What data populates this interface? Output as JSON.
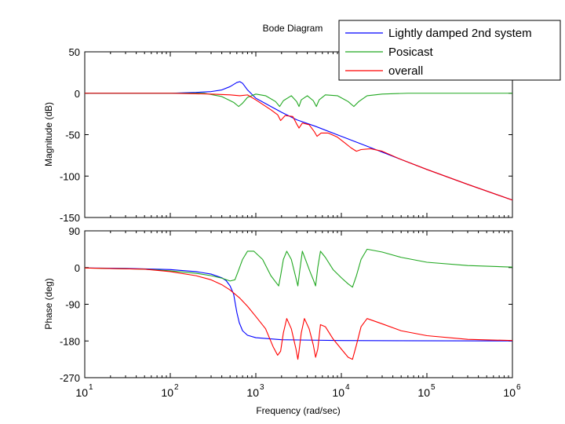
{
  "chart_data": {
    "type": "line",
    "title": "Bode Diagram",
    "xlabel": "Frequency  (rad/sec)",
    "x_scale": "log",
    "xlim": [
      10,
      1000000
    ],
    "x_ticks": [
      {
        "value": 10,
        "base": "10",
        "exp": "1"
      },
      {
        "value": 100,
        "base": "10",
        "exp": "2"
      },
      {
        "value": 1000,
        "base": "10",
        "exp": "3"
      },
      {
        "value": 10000,
        "base": "10",
        "exp": "4"
      },
      {
        "value": 100000,
        "base": "10",
        "exp": "5"
      },
      {
        "value": 1000000,
        "base": "10",
        "exp": "6"
      }
    ],
    "legend": {
      "placement": "top-right",
      "entries": [
        {
          "name": "Lightly damped 2nd system",
          "color": "#0000ff"
        },
        {
          "name": "Posicast",
          "color": "#22a822"
        },
        {
          "name": "overall",
          "color": "#ff0000"
        }
      ]
    },
    "panels": [
      {
        "id": "magnitude",
        "ylabel": "Magnitude (dB)",
        "ylim": [
          -150,
          50
        ],
        "y_ticks": [
          {
            "value": 50,
            "label": "50"
          },
          {
            "value": 0,
            "label": "0"
          },
          {
            "value": -50,
            "label": "-50"
          },
          {
            "value": -100,
            "label": "-100"
          },
          {
            "value": -150,
            "label": "-150"
          }
        ],
        "series": [
          {
            "name": "Lightly damped 2nd system",
            "color": "#0000ff",
            "points": [
              [
                10,
                0
              ],
              [
                100,
                0
              ],
              [
                200,
                1
              ],
              [
                300,
                2
              ],
              [
                400,
                4
              ],
              [
                500,
                8
              ],
              [
                600,
                13
              ],
              [
                650,
                14
              ],
              [
                700,
                12
              ],
              [
                800,
                4
              ],
              [
                1000,
                -6
              ],
              [
                1500,
                -16
              ],
              [
                2000,
                -23
              ],
              [
                3000,
                -32
              ],
              [
                5000,
                -40
              ],
              [
                10000,
                -52
              ],
              [
                20000,
                -64
              ],
              [
                50000,
                -80
              ],
              [
                100000,
                -92
              ],
              [
                300000,
                -110
              ],
              [
                1000000,
                -129
              ]
            ]
          },
          {
            "name": "Posicast",
            "color": "#22a822",
            "points": [
              [
                10,
                0
              ],
              [
                100,
                0
              ],
              [
                250,
                0
              ],
              [
                400,
                -4
              ],
              [
                550,
                -11
              ],
              [
                630,
                -16
              ],
              [
                700,
                -12
              ],
              [
                800,
                -5
              ],
              [
                1000,
                -1
              ],
              [
                1300,
                -3
              ],
              [
                1700,
                -10
              ],
              [
                1900,
                -16
              ],
              [
                2100,
                -9
              ],
              [
                2600,
                -3
              ],
              [
                3000,
                -10
              ],
              [
                3200,
                -16
              ],
              [
                3400,
                -8
              ],
              [
                4000,
                -3
              ],
              [
                4700,
                -9
              ],
              [
                5100,
                -16
              ],
              [
                5500,
                -8
              ],
              [
                6500,
                -2
              ],
              [
                9000,
                -3
              ],
              [
                12000,
                -10
              ],
              [
                14000,
                -16
              ],
              [
                16000,
                -10
              ],
              [
                20000,
                -3
              ],
              [
                30000,
                -1
              ],
              [
                60000,
                0
              ],
              [
                1000000,
                0
              ]
            ]
          },
          {
            "name": "overall",
            "color": "#ff0000",
            "points": [
              [
                10,
                0
              ],
              [
                100,
                0
              ],
              [
                300,
                -1
              ],
              [
                500,
                -2
              ],
              [
                650,
                -3
              ],
              [
                800,
                -2
              ],
              [
                1000,
                -8
              ],
              [
                1500,
                -20
              ],
              [
                1800,
                -26
              ],
              [
                1950,
                -33
              ],
              [
                2200,
                -27
              ],
              [
                2700,
                -28
              ],
              [
                3000,
                -37
              ],
              [
                3200,
                -42
              ],
              [
                3500,
                -36
              ],
              [
                4200,
                -38
              ],
              [
                4800,
                -46
              ],
              [
                5200,
                -52
              ],
              [
                5800,
                -48
              ],
              [
                7000,
                -48
              ],
              [
                9000,
                -53
              ],
              [
                11000,
                -60
              ],
              [
                13000,
                -66
              ],
              [
                15000,
                -70
              ],
              [
                17000,
                -68
              ],
              [
                22000,
                -67
              ],
              [
                30000,
                -70
              ],
              [
                50000,
                -80
              ],
              [
                100000,
                -92
              ],
              [
                300000,
                -110
              ],
              [
                1000000,
                -129
              ]
            ]
          }
        ]
      },
      {
        "id": "phase",
        "ylabel": "Phase (deg)",
        "ylim": [
          -270,
          90
        ],
        "y_ticks": [
          {
            "value": 90,
            "label": "90"
          },
          {
            "value": 0,
            "label": "0"
          },
          {
            "value": -90,
            "label": "-90"
          },
          {
            "value": -180,
            "label": "-180"
          },
          {
            "value": -270,
            "label": "-270"
          }
        ],
        "series": [
          {
            "name": "Lightly damped 2nd system",
            "color": "#0000ff",
            "points": [
              [
                10,
                -1
              ],
              [
                30,
                -2
              ],
              [
                100,
                -5
              ],
              [
                200,
                -10
              ],
              [
                300,
                -16
              ],
              [
                400,
                -25
              ],
              [
                450,
                -32
              ],
              [
                500,
                -45
              ],
              [
                550,
                -65
              ],
              [
                600,
                -110
              ],
              [
                640,
                -135
              ],
              [
                700,
                -155
              ],
              [
                800,
                -166
              ],
              [
                1000,
                -172
              ],
              [
                2000,
                -177
              ],
              [
                10000,
                -179
              ],
              [
                1000000,
                -180
              ]
            ]
          },
          {
            "name": "Posicast",
            "color": "#22a822",
            "points": [
              [
                10,
                -1
              ],
              [
                50,
                -4
              ],
              [
                100,
                -8
              ],
              [
                200,
                -14
              ],
              [
                300,
                -20
              ],
              [
                400,
                -26
              ],
              [
                500,
                -33
              ],
              [
                570,
                -30
              ],
              [
                620,
                -10
              ],
              [
                700,
                20
              ],
              [
                800,
                40
              ],
              [
                950,
                40
              ],
              [
                1200,
                20
              ],
              [
                1500,
                -20
              ],
              [
                1700,
                -35
              ],
              [
                1850,
                -45
              ],
              [
                1950,
                -20
              ],
              [
                2100,
                20
              ],
              [
                2300,
                40
              ],
              [
                2600,
                20
              ],
              [
                2900,
                -20
              ],
              [
                3100,
                -45
              ],
              [
                3250,
                -10
              ],
              [
                3500,
                40
              ],
              [
                3800,
                20
              ],
              [
                4300,
                -10
              ],
              [
                4700,
                -30
              ],
              [
                5000,
                -45
              ],
              [
                5300,
                0
              ],
              [
                5700,
                40
              ],
              [
                6500,
                25
              ],
              [
                8000,
                -5
              ],
              [
                10000,
                -25
              ],
              [
                12000,
                -40
              ],
              [
                13500,
                -48
              ],
              [
                15000,
                -20
              ],
              [
                17000,
                20
              ],
              [
                20000,
                45
              ],
              [
                30000,
                38
              ],
              [
                50000,
                25
              ],
              [
                100000,
                13
              ],
              [
                300000,
                5
              ],
              [
                1000000,
                1
              ]
            ]
          },
          {
            "name": "overall",
            "color": "#ff0000",
            "points": [
              [
                10,
                -1
              ],
              [
                50,
                -4
              ],
              [
                100,
                -10
              ],
              [
                200,
                -20
              ],
              [
                300,
                -30
              ],
              [
                400,
                -42
              ],
              [
                500,
                -55
              ],
              [
                650,
                -75
              ],
              [
                800,
                -95
              ],
              [
                1000,
                -120
              ],
              [
                1300,
                -150
              ],
              [
                1600,
                -195
              ],
              [
                1800,
                -215
              ],
              [
                1950,
                -205
              ],
              [
                2100,
                -160
              ],
              [
                2300,
                -125
              ],
              [
                2600,
                -150
              ],
              [
                2950,
                -200
              ],
              [
                3100,
                -225
              ],
              [
                3200,
                -205
              ],
              [
                3400,
                -160
              ],
              [
                3700,
                -125
              ],
              [
                4200,
                -150
              ],
              [
                4700,
                -190
              ],
              [
                5000,
                -220
              ],
              [
                5300,
                -200
              ],
              [
                5700,
                -140
              ],
              [
                6500,
                -145
              ],
              [
                8000,
                -175
              ],
              [
                10000,
                -200
              ],
              [
                12000,
                -220
              ],
              [
                13500,
                -225
              ],
              [
                15000,
                -190
              ],
              [
                17000,
                -145
              ],
              [
                20000,
                -125
              ],
              [
                30000,
                -138
              ],
              [
                50000,
                -155
              ],
              [
                100000,
                -167
              ],
              [
                300000,
                -176
              ],
              [
                1000000,
                -179
              ]
            ]
          }
        ]
      }
    ]
  }
}
